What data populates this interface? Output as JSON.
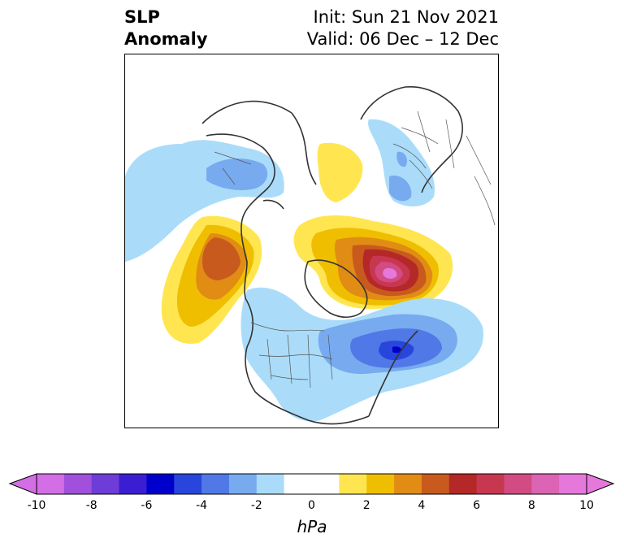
{
  "header": {
    "title_line1": "SLP",
    "title_line2": "Anomaly",
    "init_text": "Init: Sun 21 Nov 2021",
    "valid_text": "Valid: 06 Dec – 12 Dec"
  },
  "colorbar": {
    "unit": "hPa",
    "tick_labels": [
      "-10",
      "-8",
      "-6",
      "-4",
      "-2",
      "0",
      "2",
      "4",
      "6",
      "8",
      "10"
    ],
    "colors": [
      "#d36ee6",
      "#a050dc",
      "#6e3cd7",
      "#3c1ed2",
      "#0000cd",
      "#2846dc",
      "#5078e6",
      "#78aaf0",
      "#aadcfa",
      "#ffffff",
      "#ffffff",
      "#ffe650",
      "#f0be00",
      "#e18c14",
      "#c85a1e",
      "#b42828",
      "#c83750",
      "#d24b82",
      "#dc64b4",
      "#e678dc"
    ]
  },
  "map": {
    "colors": {
      "coast": "#333333",
      "border": "#555555"
    }
  }
}
